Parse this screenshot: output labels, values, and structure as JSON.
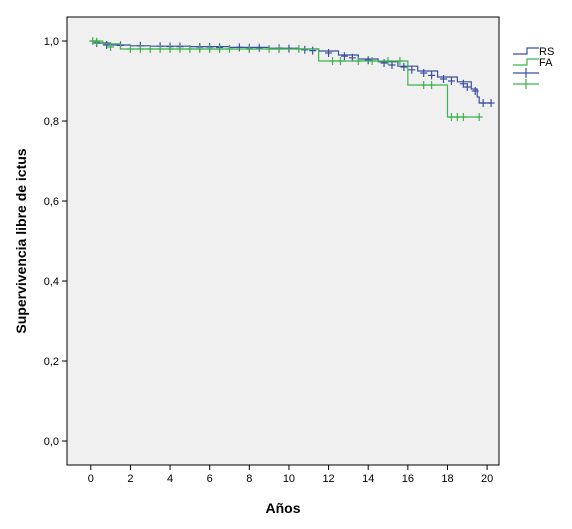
{
  "chart_data": {
    "type": "line",
    "subtype": "kaplan-meier",
    "title": "",
    "xlabel": "Años",
    "ylabel": "Supervivencia libre de ictus",
    "xlim": [
      -1.2,
      20.6
    ],
    "ylim": [
      -0.06,
      1.06
    ],
    "xticks": [
      0,
      2,
      4,
      6,
      8,
      10,
      12,
      14,
      16,
      18,
      20
    ],
    "xtick_labels": [
      "0",
      "2",
      "4",
      "6",
      "8",
      "10",
      "12",
      "14",
      "16",
      "18",
      "20"
    ],
    "yticks": [
      0.0,
      0.2,
      0.4,
      0.6,
      0.8,
      1.0
    ],
    "ytick_labels": [
      "0,0",
      "0,2",
      "0,4",
      "0,6",
      "0,8",
      "1,0"
    ],
    "grid": false,
    "background_color": "#f0f0f0",
    "legend_position": "right",
    "series": [
      {
        "name": "RS",
        "color": "#3a4fa0",
        "x": [
          0,
          0.4,
          1.0,
          2.0,
          3.0,
          5.0,
          7.0,
          9.0,
          10.5,
          11.5,
          12.5,
          13.5,
          14.5,
          15.5,
          16.5,
          17.5,
          18.5,
          19.2,
          19.5,
          19.6
        ],
        "y": [
          1.0,
          0.995,
          0.99,
          0.988,
          0.987,
          0.986,
          0.984,
          0.982,
          0.98,
          0.975,
          0.965,
          0.955,
          0.948,
          0.937,
          0.925,
          0.91,
          0.898,
          0.88,
          0.86,
          0.845
        ],
        "censored": [
          [
            0.3,
            0.995
          ],
          [
            0.8,
            0.99
          ],
          [
            1.5,
            0.989
          ],
          [
            2.5,
            0.988
          ],
          [
            3.5,
            0.987
          ],
          [
            4.0,
            0.986
          ],
          [
            4.5,
            0.986
          ],
          [
            5.5,
            0.985
          ],
          [
            6.0,
            0.985
          ],
          [
            6.5,
            0.984
          ],
          [
            7.5,
            0.984
          ],
          [
            8.0,
            0.983
          ],
          [
            8.5,
            0.983
          ],
          [
            9.5,
            0.982
          ],
          [
            10.0,
            0.981
          ],
          [
            10.8,
            0.978
          ],
          [
            11.2,
            0.976
          ],
          [
            12.0,
            0.97
          ],
          [
            12.8,
            0.962
          ],
          [
            13.2,
            0.958
          ],
          [
            14.0,
            0.952
          ],
          [
            14.8,
            0.945
          ],
          [
            15.2,
            0.94
          ],
          [
            15.8,
            0.935
          ],
          [
            16.2,
            0.928
          ],
          [
            16.8,
            0.92
          ],
          [
            17.2,
            0.914
          ],
          [
            17.8,
            0.905
          ],
          [
            18.2,
            0.9
          ],
          [
            18.8,
            0.893
          ],
          [
            19.0,
            0.885
          ],
          [
            19.4,
            0.875
          ],
          [
            19.8,
            0.845
          ],
          [
            20.2,
            0.845
          ]
        ]
      },
      {
        "name": "FA",
        "color": "#3fb34f",
        "x": [
          0,
          0.6,
          1.5,
          11.5,
          16.0,
          18.0
        ],
        "y": [
          1.0,
          0.993,
          0.98,
          0.95,
          0.89,
          0.81
        ],
        "censored": [
          [
            0.1,
            1.0
          ],
          [
            0.3,
            0.998
          ],
          [
            1.0,
            0.985
          ],
          [
            2.0,
            0.98
          ],
          [
            2.5,
            0.98
          ],
          [
            3.0,
            0.98
          ],
          [
            3.5,
            0.98
          ],
          [
            4.0,
            0.98
          ],
          [
            4.5,
            0.98
          ],
          [
            5.0,
            0.98
          ],
          [
            5.5,
            0.98
          ],
          [
            6.0,
            0.98
          ],
          [
            6.5,
            0.98
          ],
          [
            7.0,
            0.98
          ],
          [
            8.0,
            0.98
          ],
          [
            9.0,
            0.98
          ],
          [
            9.5,
            0.98
          ],
          [
            10.5,
            0.98
          ],
          [
            12.2,
            0.95
          ],
          [
            12.6,
            0.95
          ],
          [
            13.5,
            0.95
          ],
          [
            14.2,
            0.95
          ],
          [
            15.0,
            0.95
          ],
          [
            15.6,
            0.95
          ],
          [
            16.8,
            0.89
          ],
          [
            17.2,
            0.89
          ],
          [
            18.2,
            0.81
          ],
          [
            18.5,
            0.81
          ],
          [
            18.8,
            0.81
          ],
          [
            19.6,
            0.81
          ]
        ]
      }
    ],
    "legend": [
      {
        "symbol": "line",
        "series": "RS",
        "label": "RS"
      },
      {
        "symbol": "line",
        "series": "FA",
        "label": "FA"
      },
      {
        "symbol": "cross",
        "series": "RS",
        "label": ""
      },
      {
        "symbol": "cross",
        "series": "FA",
        "label": ""
      }
    ]
  }
}
